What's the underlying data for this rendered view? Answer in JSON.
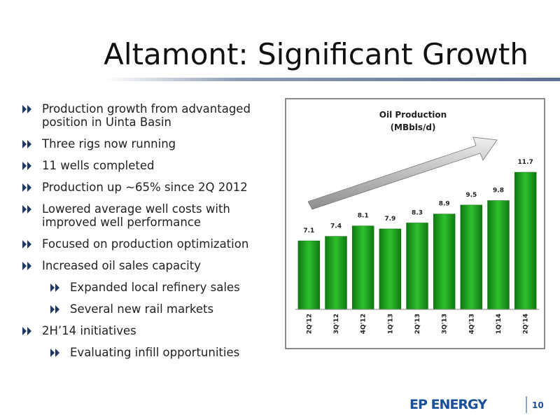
{
  "title": "Altamont: Significant Growth",
  "bullets": [
    {
      "text": "Production growth from advantaged position in Uinta Basin"
    },
    {
      "text": "Three rigs now running"
    },
    {
      "text": "11 wells completed"
    },
    {
      "text": "Production up ~65% since 2Q 2012"
    },
    {
      "text": "Lowered average well costs with improved well performance"
    },
    {
      "text": "Focused on production optimization"
    },
    {
      "text": "Increased oil sales capacity",
      "subitems": [
        "Expanded local refinery sales",
        "Several new rail markets"
      ]
    },
    {
      "text": "2H’14 initiatives",
      "subitems": [
        "Evaluating infill opportunities"
      ]
    }
  ],
  "chart_data": {
    "type": "bar",
    "title": "Oil Production",
    "subtitle": "(MBbls/d)",
    "categories": [
      "2Q'12",
      "3Q'12",
      "4Q'12",
      "1Q'13",
      "2Q'13",
      "3Q'13",
      "4Q'13",
      "1Q'14",
      "2Q'14"
    ],
    "values": [
      7.1,
      7.4,
      8.1,
      7.9,
      8.3,
      8.9,
      9.5,
      9.8,
      11.7
    ],
    "color": "#1ea01e",
    "ylim": [
      2.5,
      12.5
    ]
  },
  "footer": {
    "logo": "EP ENERGY",
    "page": "10"
  }
}
